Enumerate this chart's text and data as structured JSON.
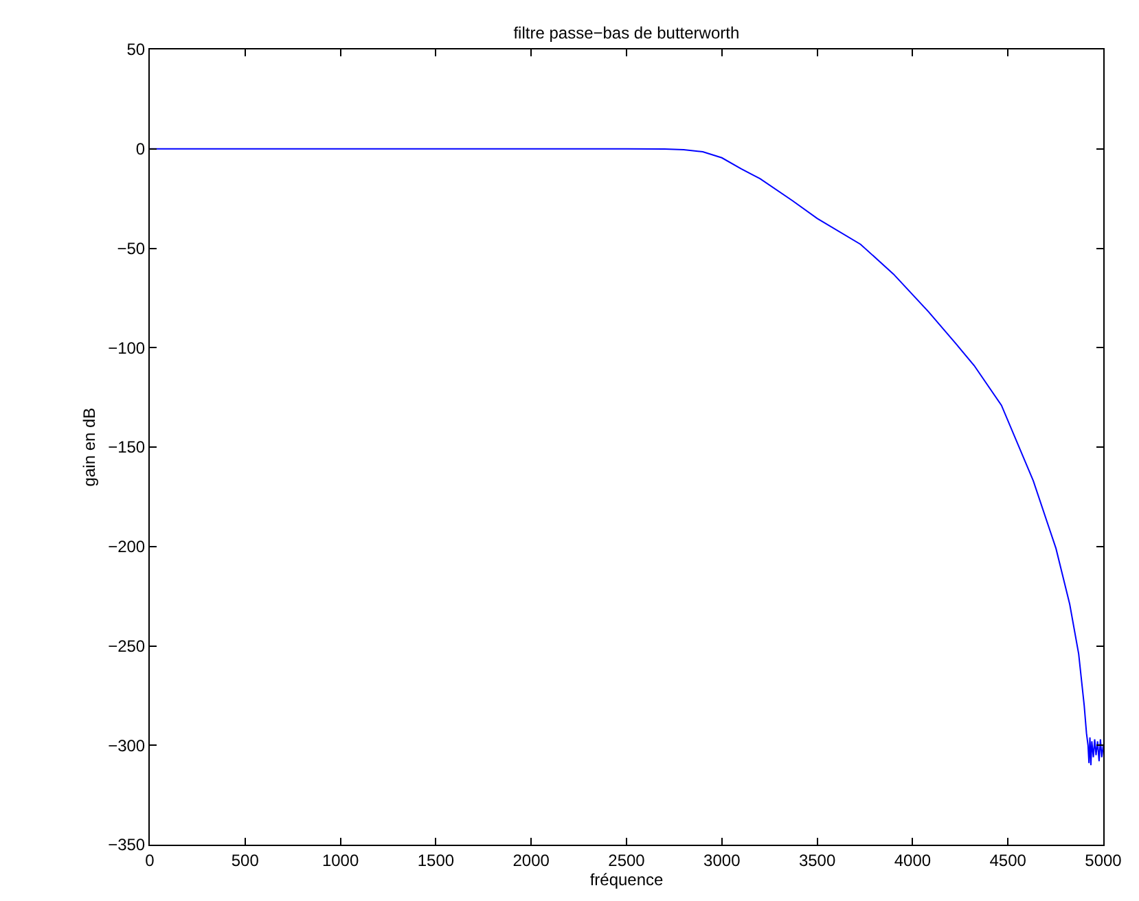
{
  "chart_data": {
    "type": "line",
    "title": "filtre passe−bas de butterworth",
    "xlabel": "fréquence",
    "ylabel": "gain en dB",
    "series": [
      {
        "color": "#0000ff",
        "x": [
          0,
          1000,
          2000,
          2500,
          2700,
          2800,
          2900,
          3000,
          3100,
          3200,
          3369,
          3500,
          3727,
          3900,
          4084,
          4227,
          4323,
          4466,
          4633,
          4752,
          4824,
          4871,
          4900,
          4912,
          4920,
          4925,
          4930,
          4935,
          4940,
          4948,
          4955,
          4962,
          4970,
          4978,
          4985,
          4992,
          5000
        ],
        "values": [
          0,
          0,
          0,
          0,
          -0.1,
          -0.4,
          -1.5,
          -4.5,
          -10,
          -15,
          -26,
          -35,
          -48,
          -63,
          -82,
          -98,
          -109,
          -129,
          -167,
          -201,
          -229,
          -254,
          -280,
          -294,
          -300,
          -309,
          -296,
          -310,
          -298,
          -306,
          -297,
          -305,
          -298,
          -308,
          -297,
          -306,
          -300
        ]
      }
    ],
    "xlim": [
      0,
      5000
    ],
    "xticks": [
      0,
      500,
      1000,
      1500,
      2000,
      2500,
      3000,
      3500,
      4000,
      4500,
      5000
    ],
    "ylim": [
      -350,
      50
    ],
    "yticks": [
      -350,
      -300,
      -250,
      -200,
      -150,
      -100,
      -50,
      0,
      50
    ],
    "marker": "none",
    "line_style": "solid"
  }
}
